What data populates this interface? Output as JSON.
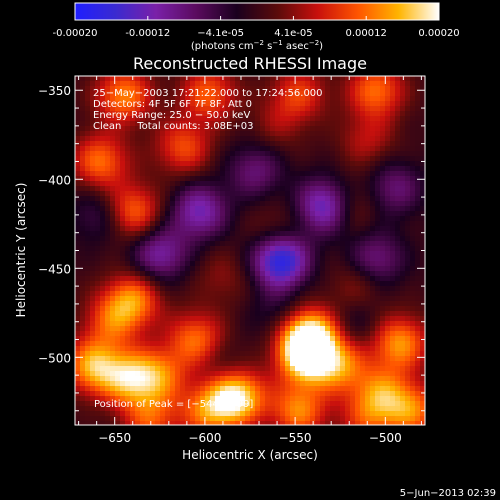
{
  "chart_data": {
    "type": "heatmap",
    "title": "Reconstructed RHESSI Image",
    "xlabel": "Heliocentric X (arcsec)",
    "ylabel": "Heliocentric Y (arcsec)",
    "xlim": [
      -672,
      -478
    ],
    "ylim": [
      -538,
      -342
    ],
    "x_ticks": [
      -650,
      -600,
      -550,
      -500
    ],
    "x_tick_labels": [
      "−650",
      "−600",
      "−550",
      "−500"
    ],
    "y_ticks": [
      -350,
      -400,
      -450,
      -500
    ],
    "y_tick_labels": [
      "−350",
      "−400",
      "−450",
      "−500"
    ],
    "colorbar": {
      "range": [
        -0.0002,
        0.0002
      ],
      "colors": [
        "#1f1fff",
        "#3a2ad0",
        "#7a20a8",
        "#5a0b5e",
        "#1a001e",
        "#5a0b0b",
        "#c8100d",
        "#ff5500",
        "#ffb400",
        "#ffffff"
      ],
      "tick_labels": [
        "-0.00020",
        "-0.00012",
        "−4.1e-05",
        "4.1e-05",
        "0.00012",
        "0.00020"
      ],
      "unit_label_parts": [
        "(photons cm",
        "−2",
        " s",
        "−1",
        " asec",
        "−2",
        ")"
      ]
    },
    "annotations": [
      "25−May−2003 17:21:22.000 to 17:24:56.000",
      "Detectors: 4F 5F 6F 7F 8F, Att 0",
      "Energy Range: 25.0 − 50.0 keV",
      "Clean     Total counts: 3.08E+03"
    ],
    "peak_label": "Position of Peak = [−544,−499]",
    "peak": [
      -544,
      -499
    ],
    "features": [
      {
        "x": -645,
        "y": -353,
        "v": 0.00013
      },
      {
        "x": -598,
        "y": -352,
        "v": 0.00011
      },
      {
        "x": -548,
        "y": -352,
        "v": 9e-05
      },
      {
        "x": -505,
        "y": -350,
        "v": 0.00012
      },
      {
        "x": -612,
        "y": -382,
        "v": 0.0001
      },
      {
        "x": -658,
        "y": -390,
        "v": 0.00012
      },
      {
        "x": -560,
        "y": -370,
        "v": 4e-05
      },
      {
        "x": -510,
        "y": -378,
        "v": 6e-05
      },
      {
        "x": -640,
        "y": -418,
        "v": 0.00012
      },
      {
        "x": -640,
        "y": -468,
        "v": 0.00013
      },
      {
        "x": -560,
        "y": -430,
        "v": 5e-05
      },
      {
        "x": -590,
        "y": -455,
        "v": 4e-05
      },
      {
        "x": -520,
        "y": -415,
        "v": 6e-05
      },
      {
        "x": -515,
        "y": -460,
        "v": 5e-05
      },
      {
        "x": -625,
        "y": -442,
        "v": -0.00011
      },
      {
        "x": -658,
        "y": -420,
        "v": -6e-05
      },
      {
        "x": -603,
        "y": -418,
        "v": -0.00012
      },
      {
        "x": -572,
        "y": -395,
        "v": -8e-05
      },
      {
        "x": -533,
        "y": -415,
        "v": -0.00015
      },
      {
        "x": -558,
        "y": -445,
        "v": -0.00019
      },
      {
        "x": -505,
        "y": -445,
        "v": -9e-05
      },
      {
        "x": -495,
        "y": -405,
        "v": -8e-05
      },
      {
        "x": -662,
        "y": -505,
        "v": 0.00015
      },
      {
        "x": -642,
        "y": -512,
        "v": 0.00014
      },
      {
        "x": -652,
        "y": -480,
        "v": 9e-05
      },
      {
        "x": -605,
        "y": -490,
        "v": 0.00012
      },
      {
        "x": -625,
        "y": -510,
        "v": 0.00011
      },
      {
        "x": -542,
        "y": -487,
        "v": 0.00017
      },
      {
        "x": -544,
        "y": -499,
        "v": 0.0002
      },
      {
        "x": -525,
        "y": -505,
        "v": 0.00012
      },
      {
        "x": -582,
        "y": -522,
        "v": 0.00019
      },
      {
        "x": -598,
        "y": -530,
        "v": 0.00012
      },
      {
        "x": -548,
        "y": -530,
        "v": 0.00013
      },
      {
        "x": -492,
        "y": -492,
        "v": 0.00014
      },
      {
        "x": -502,
        "y": -520,
        "v": 0.00011
      },
      {
        "x": -485,
        "y": -530,
        "v": 0.00012
      },
      {
        "x": -510,
        "y": -535,
        "v": 8e-05
      },
      {
        "x": -630,
        "y": -535,
        "v": 0.0001
      },
      {
        "x": -560,
        "y": -475,
        "v": -4e-05
      },
      {
        "x": -590,
        "y": -505,
        "v": -3e-05
      },
      {
        "x": -515,
        "y": -480,
        "v": -4e-05
      }
    ]
  },
  "footer": {
    "date": "5−Jun−2013 02:39"
  }
}
